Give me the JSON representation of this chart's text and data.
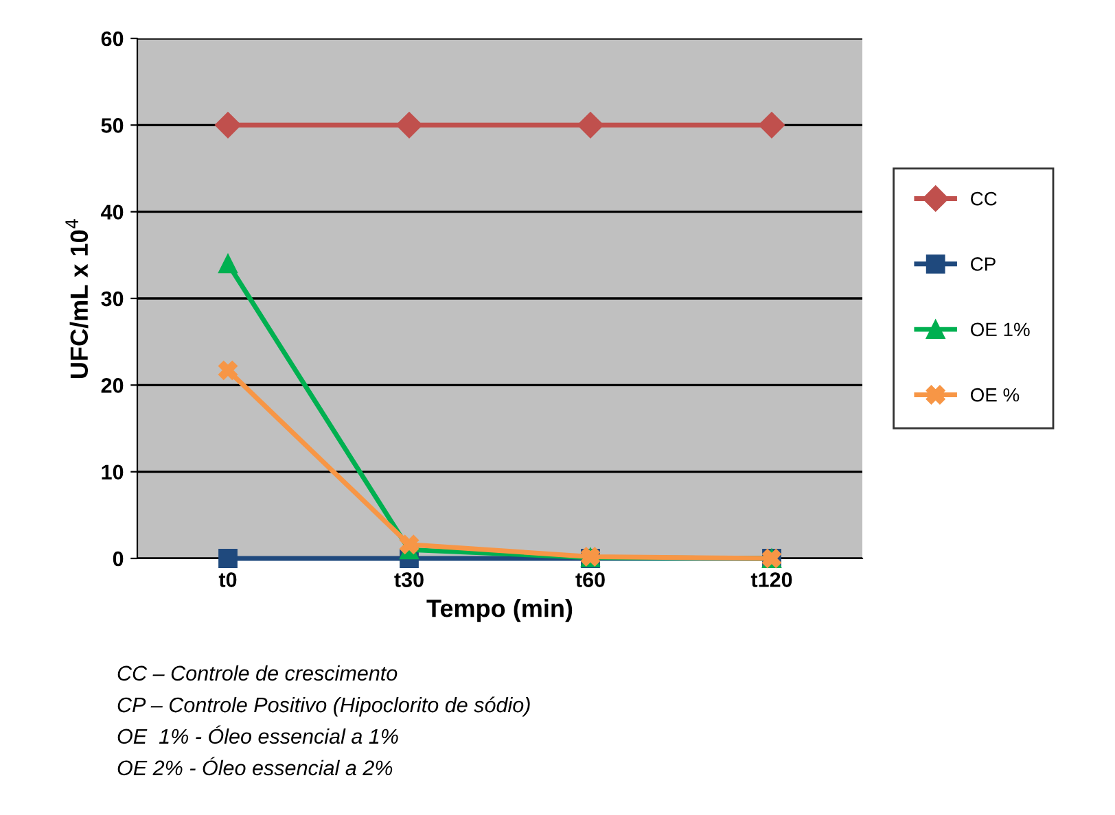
{
  "chart_data": {
    "type": "line",
    "xlabel": "Tempo (min)",
    "ylabel": "UFC/mL x 10$^{4}$",
    "categories": [
      "t0",
      "t30",
      "t60",
      "t120"
    ],
    "series": [
      {
        "name": "CC",
        "color": "#c0504d",
        "marker": "diamond",
        "values": [
          50,
          50,
          50,
          50
        ]
      },
      {
        "name": "CP",
        "color": "#1f497d",
        "marker": "square",
        "values": [
          0,
          0,
          0,
          0
        ]
      },
      {
        "name": "OE 1%",
        "color": "#00b050",
        "marker": "triangle",
        "values": [
          34,
          1.0,
          0.1,
          0
        ]
      },
      {
        "name": "OE %",
        "color": "#f79646",
        "marker": "cross",
        "values": [
          21.7,
          1.6,
          0.2,
          0
        ]
      }
    ],
    "ylim": [
      0,
      60
    ],
    "yticks": [
      0,
      10,
      20,
      30,
      40,
      50,
      60
    ],
    "grid": "y",
    "legend": "right",
    "line_style": "solid",
    "annotations": [
      "CC – Controle de crescimento",
      "CP – Controle Positivo (Hipoclorito de sódio)",
      "OE  1% - Óleo essencial a 1%",
      "OE 2% - Óleo essencial a 2%"
    ]
  }
}
